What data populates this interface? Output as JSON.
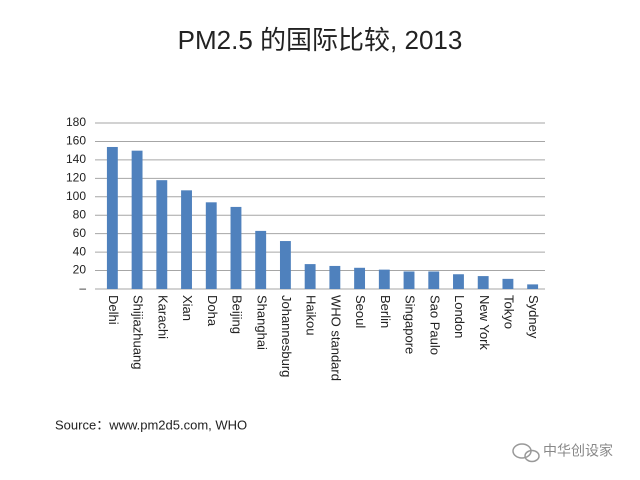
{
  "chart_data": {
    "type": "bar",
    "title": "PM2.5 的国际比较, 2013",
    "categories": [
      "Delhi",
      "Shijiazhuang",
      "Karachi",
      "Xian",
      "Doha",
      "Beijing",
      "Shanghai",
      "Johannesburg",
      "Haikou",
      "WHO standard",
      "Seoul",
      "Berlin",
      "Singapore",
      "Sao Paulo",
      "London",
      "New York",
      "Tokyo",
      "Sydney"
    ],
    "values": [
      154,
      150,
      118,
      107,
      94,
      89,
      63,
      52,
      27,
      25,
      23,
      21,
      19,
      19,
      16,
      14,
      11,
      5
    ],
    "color": "#4f81bd",
    "ylim": [
      0,
      180
    ],
    "yticks": [
      {
        "value": 0,
        "label": "–"
      },
      20,
      40,
      60,
      80,
      100,
      120,
      140,
      160,
      180
    ],
    "grid": true,
    "source": "Source：www.pm2d5.com, WHO",
    "watermark": "中华创设家"
  }
}
